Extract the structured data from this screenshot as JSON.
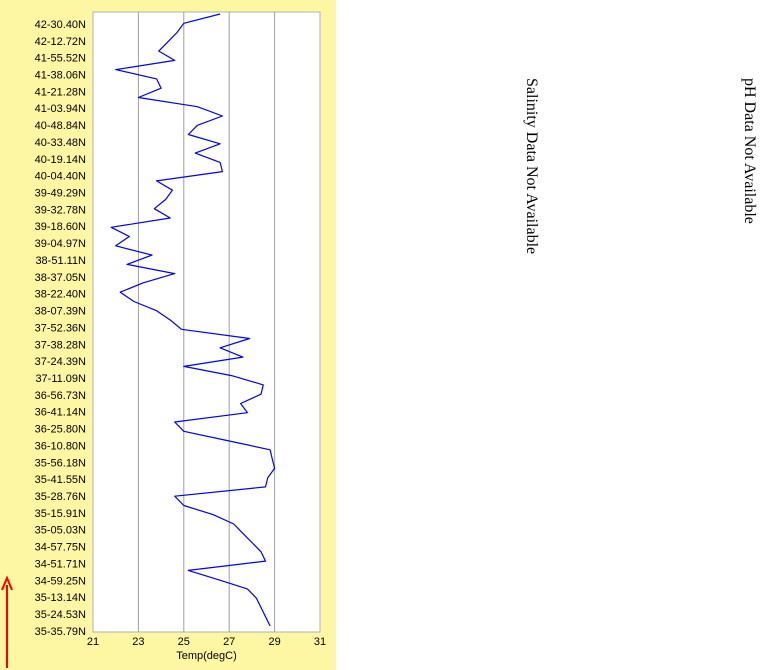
{
  "chart_data": {
    "type": "line",
    "xlabel": "Temp(degC)",
    "xlim": [
      21,
      31
    ],
    "xticks": [
      "21",
      "23",
      "25",
      "27",
      "29",
      "31"
    ],
    "grid": true,
    "y_tick_labels": [
      "42-30.40N",
      "42-12.72N",
      "41-55.52N",
      "41-38.06N",
      "41-21.28N",
      "41-03.94N",
      "40-48.84N",
      "40-33.48N",
      "40-19.14N",
      "40-04.40N",
      "39-49.29N",
      "39-32.78N",
      "39-18.60N",
      "39-04.97N",
      "38-51.11N",
      "38-37.05N",
      "38-22.40N",
      "38-07.39N",
      "37-52.36N",
      "37-38.28N",
      "37-24.39N",
      "37-11.09N",
      "36-56.73N",
      "36-41.14N",
      "36-25.80N",
      "36-10.80N",
      "35-56.18N",
      "35-41.55N",
      "35-28.76N",
      "35-15.91N",
      "35-05.03N",
      "34-57.75N",
      "34-51.71N",
      "34-59.25N",
      "35-13.14N",
      "35-24.53N",
      "35-35.79N"
    ],
    "series": [
      {
        "color": "#0000ff",
        "values": [
          26.6,
          25.0,
          24.7,
          24.3,
          23.9,
          24.6,
          22.0,
          23.8,
          24.0,
          23.0,
          25.6,
          26.7,
          25.6,
          25.2,
          26.6,
          25.5,
          26.6,
          26.7,
          23.8,
          24.5,
          24.2,
          23.7,
          24.4,
          21.8,
          22.6,
          22.0,
          23.6,
          22.5,
          24.6,
          23.2,
          22.2,
          22.8,
          23.8,
          24.4,
          24.9,
          27.9,
          26.6,
          27.6,
          25.0,
          27.1,
          28.5,
          28.4,
          27.5,
          27.8,
          24.6,
          25.0,
          26.9,
          28.8,
          28.9,
          29.0,
          28.7,
          28.6,
          24.6,
          25.0,
          26.3,
          27.2,
          27.6,
          28.0,
          28.4,
          28.6,
          25.2,
          26.5,
          27.8,
          28.2,
          28.4,
          28.6,
          28.8
        ]
      }
    ]
  },
  "notes": {
    "salinity": "Salinity Data Not Available",
    "ph": "pH Data Not Available"
  },
  "colors": {
    "panel": "#fdf7a4",
    "line": "#0000ff",
    "arrow": "#ff0000",
    "grid": "#a0a0a0"
  }
}
